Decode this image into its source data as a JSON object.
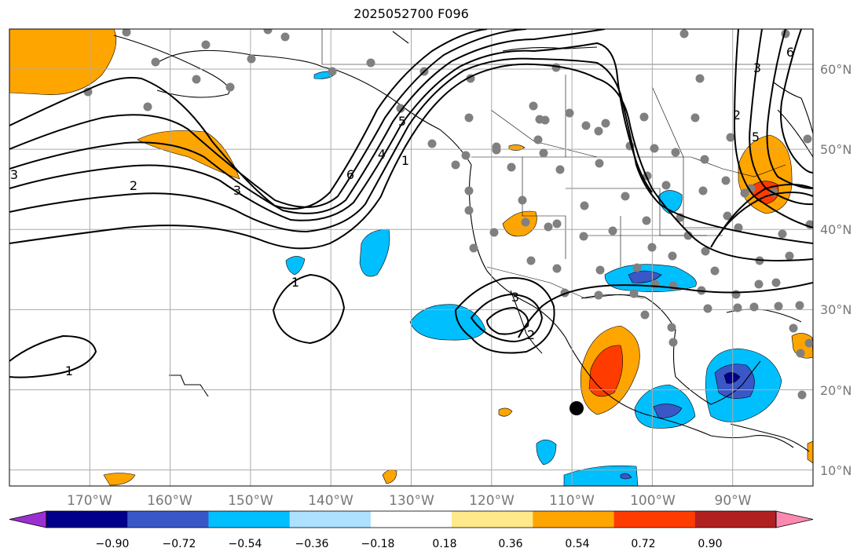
{
  "title": "2025052700 F096",
  "lon_labels": [
    "170°W",
    "160°W",
    "150°W",
    "140°W",
    "130°W",
    "120°W",
    "110°W",
    "100°W",
    "90°W"
  ],
  "lat_labels": [
    "60°N",
    "50°N",
    "40°N",
    "30°N",
    "20°N",
    "10°N"
  ],
  "colorbar": {
    "ticks": [
      "−0.90",
      "−0.72",
      "−0.54",
      "−0.36",
      "−0.18",
      "0.18",
      "0.36",
      "0.54",
      "0.72",
      "0.90"
    ],
    "colors": [
      "#9b30d0",
      "#00008b",
      "#3a57c8",
      "#00bfff",
      "#aee0ff",
      "#ffffff",
      "#ffe98a",
      "#ffa500",
      "#ff3c00",
      "#b02020",
      "#ff88b0"
    ]
  },
  "contour_labels": [
    "1",
    "2",
    "3",
    "6",
    "4",
    "5",
    "1",
    "3",
    "2",
    "1",
    "2",
    "3",
    "5",
    "6",
    "3"
  ],
  "map_extent": {
    "lon": [
      -180,
      -80
    ],
    "lat": [
      8,
      65
    ]
  }
}
